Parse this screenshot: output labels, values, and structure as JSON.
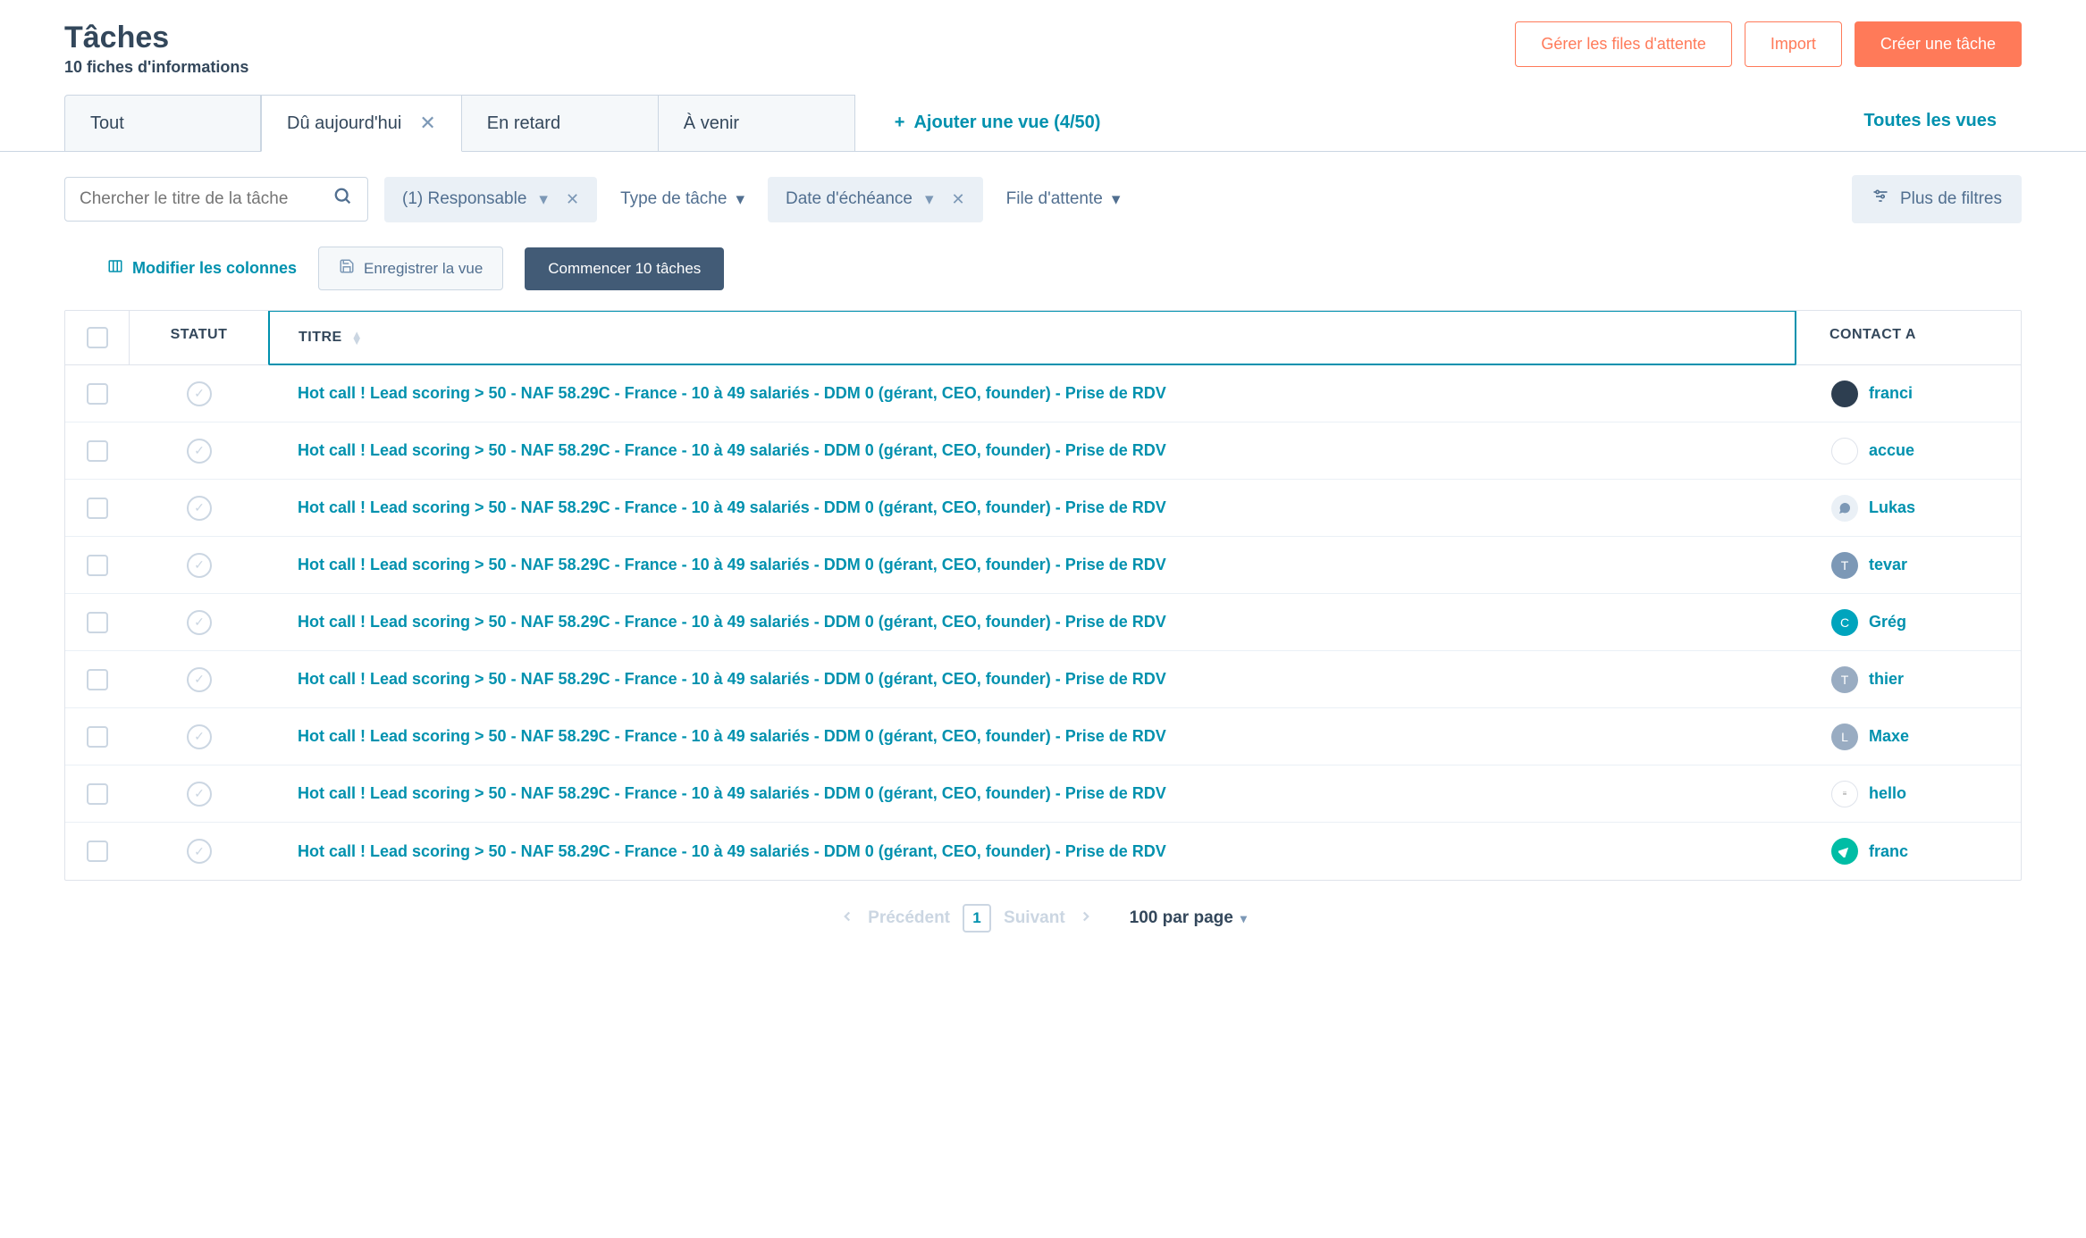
{
  "header": {
    "title": "Tâches",
    "subtitle": "10 fiches d'informations",
    "btn_queues": "Gérer les files d'attente",
    "btn_import": "Import",
    "btn_create": "Créer une tâche"
  },
  "tabs": {
    "items": [
      {
        "label": "Tout",
        "closable": false,
        "active": false
      },
      {
        "label": "Dû aujourd'hui",
        "closable": true,
        "active": true
      },
      {
        "label": "En retard",
        "closable": false,
        "active": false
      },
      {
        "label": "À venir",
        "closable": false,
        "active": false
      }
    ],
    "add_view": "Ajouter une vue (4/50)",
    "all_views": "Toutes les vues"
  },
  "filters": {
    "search_placeholder": "Chercher le titre de la tâche",
    "responsible": "(1) Responsable",
    "task_type": "Type de tâche",
    "due_date": "Date d'échéance",
    "queue": "File d'attente",
    "more": "Plus de filtres"
  },
  "actions": {
    "edit_cols": "Modifier les colonnes",
    "save_view": "Enregistrer la vue",
    "start": "Commencer 10 tâches"
  },
  "table": {
    "columns": {
      "status": "STATUT",
      "title": "TITRE",
      "contact": "CONTACT A"
    },
    "rows": [
      {
        "title": "Hot call ! Lead scoring > 50 - NAF 58.29C - France - 10 à 49 salariés - DDM 0 (gérant, CEO, founder) - Prise de RDV",
        "contact": "franci",
        "avatar_class": "dark",
        "avatar_text": ""
      },
      {
        "title": "Hot call ! Lead scoring > 50 - NAF 58.29C - France - 10 à 49 salariés - DDM 0 (gérant, CEO, founder) - Prise de RDV",
        "contact": "accue",
        "avatar_class": "white",
        "avatar_text": ""
      },
      {
        "title": "Hot call ! Lead scoring > 50 - NAF 58.29C - France - 10 à 49 salariés - DDM 0 (gérant, CEO, founder) - Prise de RDV",
        "contact": "Lukas",
        "avatar_class": "gray-icon",
        "avatar_text": ""
      },
      {
        "title": "Hot call ! Lead scoring > 50 - NAF 58.29C - France - 10 à 49 salariés - DDM 0 (gérant, CEO, founder) - Prise de RDV",
        "contact": "tevar",
        "avatar_class": "purple",
        "avatar_text": "T"
      },
      {
        "title": "Hot call ! Lead scoring > 50 - NAF 58.29C - France - 10 à 49 salariés - DDM 0 (gérant, CEO, founder) - Prise de RDV",
        "contact": "Grég",
        "avatar_class": "blue-c",
        "avatar_text": "C"
      },
      {
        "title": "Hot call ! Lead scoring > 50 - NAF 58.29C - France - 10 à 49 salariés - DDM 0 (gérant, CEO, founder) - Prise de RDV",
        "contact": "thier",
        "avatar_class": "gray-t",
        "avatar_text": "T"
      },
      {
        "title": "Hot call ! Lead scoring > 50 - NAF 58.29C - France - 10 à 49 salariés - DDM 0 (gérant, CEO, founder) - Prise de RDV",
        "contact": "Maxe",
        "avatar_class": "gray-l",
        "avatar_text": "L"
      },
      {
        "title": "Hot call ! Lead scoring > 50 - NAF 58.29C - France - 10 à 49 salariés - DDM 0 (gérant, CEO, founder) - Prise de RDV",
        "contact": "hello",
        "avatar_class": "lines",
        "avatar_text": "≡"
      },
      {
        "title": "Hot call ! Lead scoring > 50 - NAF 58.29C - France - 10 à 49 salariés - DDM 0 (gérant, CEO, founder) - Prise de RDV",
        "contact": "franc",
        "avatar_class": "teal",
        "avatar_text": ""
      }
    ]
  },
  "pagination": {
    "prev": "Précédent",
    "page": "1",
    "next": "Suivant",
    "per_page": "100 par page"
  },
  "colors": {
    "primary": "#ff7a59",
    "link": "#0091ae",
    "text": "#33475b",
    "muted": "#7c98b6",
    "border": "#cbd6e2",
    "chip_bg": "#eaf0f6"
  }
}
